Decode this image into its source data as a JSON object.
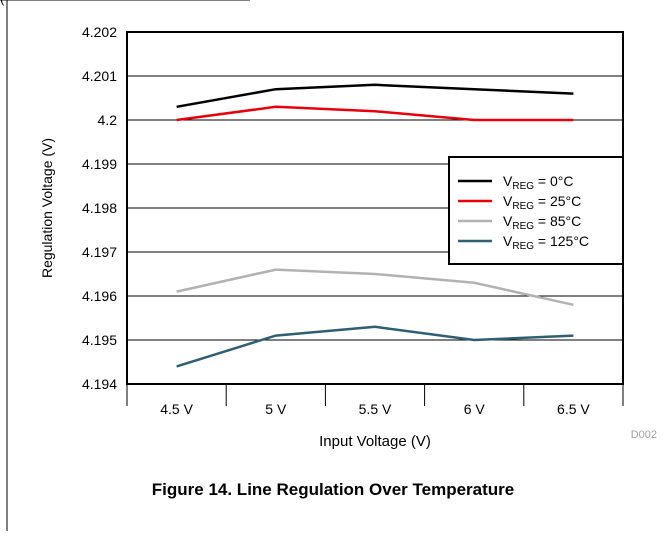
{
  "top_partial_text": "(",
  "figure_caption": "Figure 14. Line Regulation Over Temperature",
  "figure_code": "D002",
  "colors": {
    "frame": "#000000",
    "grid": "#000000",
    "series": [
      "#000000",
      "#e8000b",
      "#b2b2b2",
      "#2e5f73"
    ]
  },
  "chart_data": {
    "type": "line",
    "xlabel": "Input Voltage (V)",
    "ylabel": "Regulation Voltage (V)",
    "categories": [
      "4.5 V",
      "5 V",
      "5.5 V",
      "6 V",
      "6.5 V"
    ],
    "ylim": [
      4.194,
      4.202
    ],
    "yticks": [
      "4.194",
      "4.195",
      "4.196",
      "4.197",
      "4.198",
      "4.199",
      "4.2",
      "4.201",
      "4.202"
    ],
    "grid": "horizontal",
    "legend_position": "right",
    "series": [
      {
        "name": "V_REG = 0°C",
        "legend_main": "V",
        "legend_sub": "REG",
        "legend_rest": " = 0°C",
        "values": [
          4.2003,
          4.2007,
          4.2008,
          4.2007,
          4.2006
        ]
      },
      {
        "name": "V_REG = 25°C",
        "legend_main": "V",
        "legend_sub": "REG",
        "legend_rest": " = 25°C",
        "values": [
          4.2,
          4.2003,
          4.2002,
          4.2,
          4.2
        ]
      },
      {
        "name": "V_REG = 85°C",
        "legend_main": "V",
        "legend_sub": "REG",
        "legend_rest": " = 85°C",
        "values": [
          4.1961,
          4.1966,
          4.1965,
          4.1963,
          4.1958
        ]
      },
      {
        "name": "V_REG = 125°C",
        "legend_main": "V",
        "legend_sub": "REG",
        "legend_rest": " = 125°C",
        "values": [
          4.1944,
          4.1951,
          4.1953,
          4.195,
          4.1951
        ]
      }
    ]
  }
}
